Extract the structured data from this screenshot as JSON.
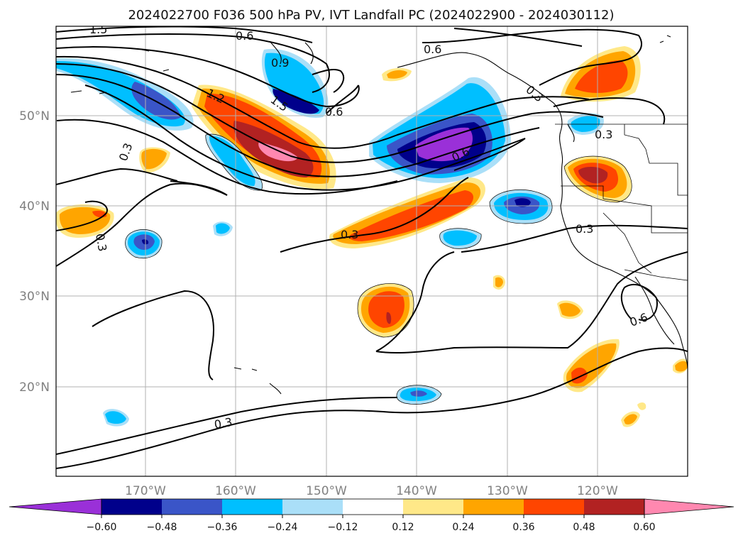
{
  "title": "2024022700 F036 500 hPa PV, IVT Landfall PC (2024022900 - 2024030112)",
  "lat_labels": [
    "20°N",
    "30°N",
    "40°N",
    "50°N"
  ],
  "lon_labels": [
    "170°W",
    "160°W",
    "150°W",
    "140°W",
    "130°W",
    "120°W"
  ],
  "colorbar": {
    "ticks": [
      "−0.60",
      "−0.48",
      "−0.36",
      "−0.24",
      "−0.12",
      "0.12",
      "0.24",
      "0.36",
      "0.48",
      "0.60"
    ],
    "colors": [
      "#9a30d8",
      "#00008b",
      "#3a55c8",
      "#00bfff",
      "#aadff8",
      "#ffffff",
      "#ffe888",
      "#ffa500",
      "#ff4500",
      "#b22222",
      "#ff88b0"
    ]
  },
  "contour_labels": [
    "1.5",
    "0.6",
    "0.9",
    "0.6",
    "1.2",
    "1.5",
    "0.6",
    "0.6",
    "0.3",
    "0.3",
    "0.3",
    "0.3",
    "0.3",
    "0.3",
    "0.6",
    "0.3"
  ]
}
